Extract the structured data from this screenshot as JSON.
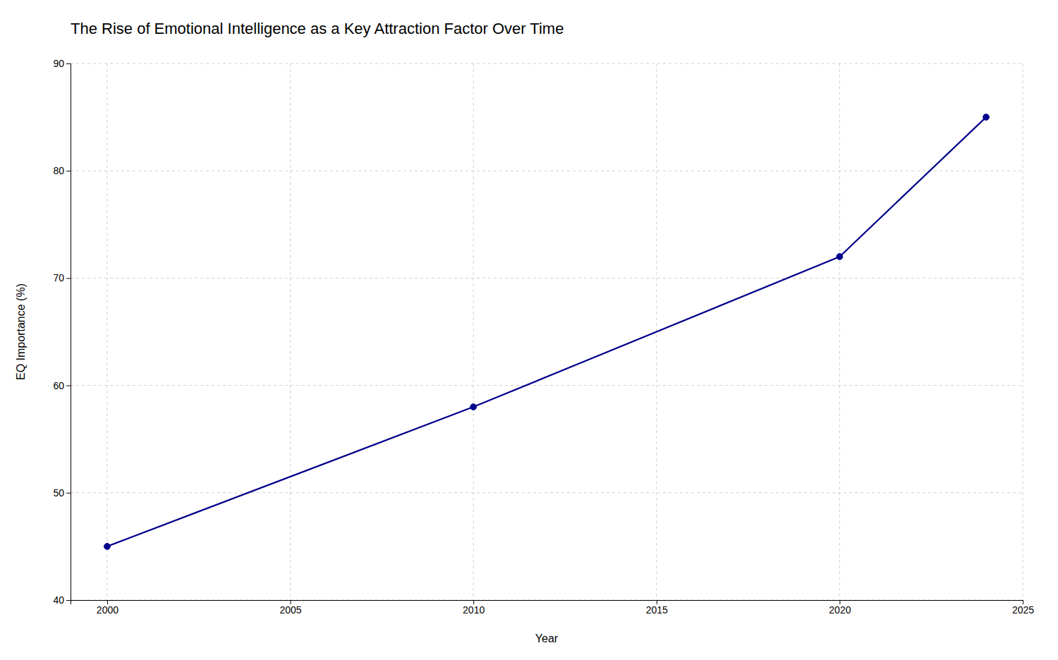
{
  "chart_data": {
    "type": "line",
    "title": "The Rise of Emotional Intelligence as a Key Attraction Factor Over Time",
    "xlabel": "Year",
    "ylabel": "EQ Importance (%)",
    "x": [
      2000,
      2010,
      2020,
      2024
    ],
    "values": [
      45,
      58,
      72,
      85
    ],
    "color": "#00008B",
    "marker": "circle",
    "line_style": "solid",
    "xlim": [
      1999,
      2025
    ],
    "ylim": [
      40,
      90
    ],
    "xticks": [
      2000,
      2005,
      2010,
      2015,
      2020,
      2025
    ],
    "yticks": [
      40,
      50,
      60,
      70,
      80,
      90
    ],
    "grid": true
  }
}
